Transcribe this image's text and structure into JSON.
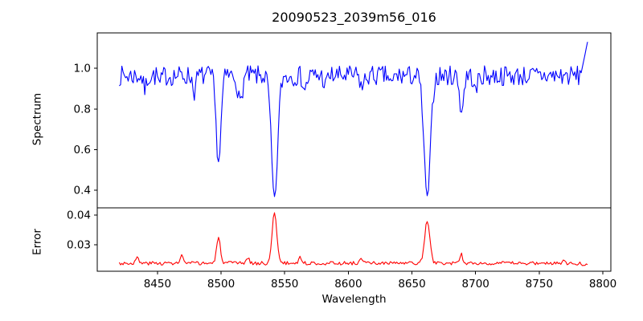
{
  "chart_data": {
    "type": "line",
    "title": "20090523_2039m56_016",
    "xlabel": "Wavelength",
    "xlim": [
      8402.7,
      8806.3
    ],
    "xticks": [
      8450,
      8500,
      8550,
      8600,
      8650,
      8700,
      8750,
      8800
    ],
    "xticklabels": [
      "8450",
      "8500",
      "8550",
      "8600",
      "8650",
      "8700",
      "8750",
      "8800"
    ],
    "x_data_range": [
      8420,
      8788
    ],
    "x_step": 1,
    "grid": false,
    "legend": "none",
    "panels": [
      {
        "ylabel": "Spectrum",
        "color": "#0000ff",
        "ylim": [
          0.314,
          1.174
        ],
        "yticks": [
          0.4,
          0.6,
          0.8,
          1.0
        ],
        "yticklabels": [
          "0.4",
          "0.6",
          "0.8",
          "1.0"
        ],
        "continuum": 0.978,
        "noise_span": 0.1,
        "noise_skew": 0.65,
        "seed": 7,
        "absorption_lines": [
          {
            "center": 8440,
            "depth": 0.07,
            "sigma": 1.2
          },
          {
            "center": 8452,
            "depth": 0.05,
            "sigma": 1.0
          },
          {
            "center": 8479,
            "depth": 0.08,
            "sigma": 1.2
          },
          {
            "center": 8498,
            "depth": 0.43,
            "sigma": 1.9
          },
          {
            "center": 8515,
            "depth": 0.14,
            "sigma": 1.6
          },
          {
            "center": 8542,
            "depth": 0.62,
            "sigma": 2.4
          },
          {
            "center": 8566,
            "depth": 0.07,
            "sigma": 1.4
          },
          {
            "center": 8582,
            "depth": 0.05,
            "sigma": 1.2
          },
          {
            "center": 8611,
            "depth": 0.06,
            "sigma": 1.5
          },
          {
            "center": 8634,
            "depth": 0.05,
            "sigma": 1.2
          },
          {
            "center": 8662,
            "depth": 0.61,
            "sigma": 2.5
          },
          {
            "center": 8689,
            "depth": 0.18,
            "sigma": 1.5
          },
          {
            "center": 8700,
            "depth": 0.09,
            "sigma": 1.2
          }
        ],
        "right_edge_spike": {
          "start_x": 8783,
          "end_value": 1.13
        }
      },
      {
        "ylabel": "Error",
        "color": "#ff0000",
        "ylim": [
          0.0211,
          0.0424
        ],
        "yticks": [
          0.03,
          0.04
        ],
        "yticklabels": [
          "0.03",
          "0.04"
        ],
        "baseline": 0.0238,
        "noise_span": 0.0012,
        "seed": 3,
        "emission_peaks": [
          {
            "center": 8434,
            "height": 0.0018,
            "sigma": 1.2
          },
          {
            "center": 8469,
            "height": 0.0028,
            "sigma": 1.0
          },
          {
            "center": 8498,
            "height": 0.0084,
            "sigma": 1.5
          },
          {
            "center": 8521,
            "height": 0.0018,
            "sigma": 1.2
          },
          {
            "center": 8542,
            "height": 0.0174,
            "sigma": 1.8
          },
          {
            "center": 8562,
            "height": 0.002,
            "sigma": 1.2
          },
          {
            "center": 8610,
            "height": 0.0012,
            "sigma": 1.5
          },
          {
            "center": 8662,
            "height": 0.0143,
            "sigma": 2.0
          },
          {
            "center": 8689,
            "height": 0.003,
            "sigma": 0.9
          },
          {
            "center": 8769,
            "height": 0.0015,
            "sigma": 1.0
          }
        ],
        "right_end_dip": {
          "start_x": 8780,
          "drop": 0.0005
        }
      }
    ],
    "frame_color": "#000000",
    "background_color": "#ffffff"
  }
}
